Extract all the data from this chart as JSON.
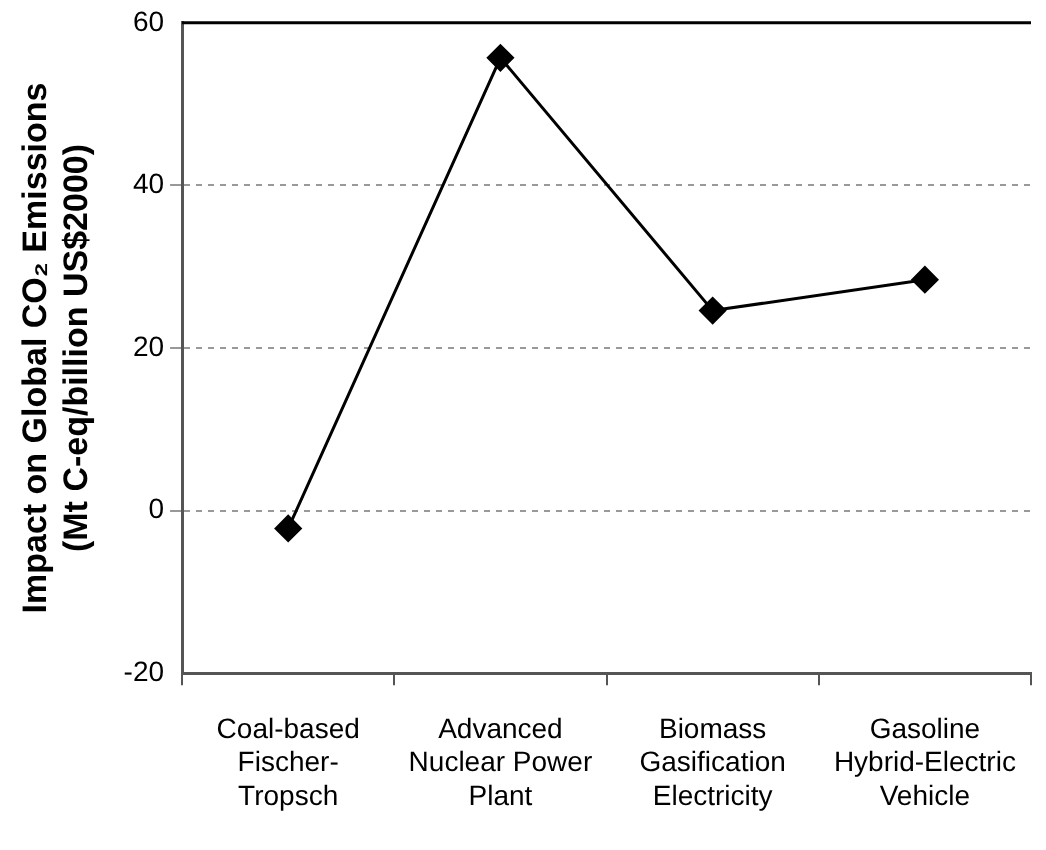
{
  "chart_data": {
    "type": "line",
    "ylabel": "Impact on Global CO₂ Emissions\n(Mt C-eq/billion US$2000)",
    "categories": [
      "Coal-based Fischer-Tropsch",
      "Advanced Nuclear Power Plant",
      "Biomass Gasification Electricity",
      "Gasoline Hybrid-Electric Vehicle"
    ],
    "series": [
      {
        "color": "#000000",
        "values": [
          -2.2,
          55.7,
          24.6,
          28.4
        ]
      }
    ],
    "ylim": [
      -20,
      60
    ],
    "yticks": [
      -20,
      0,
      20,
      40,
      60
    ],
    "grid": "y",
    "legend": false,
    "marker": "diamond",
    "line_style": "solid"
  }
}
